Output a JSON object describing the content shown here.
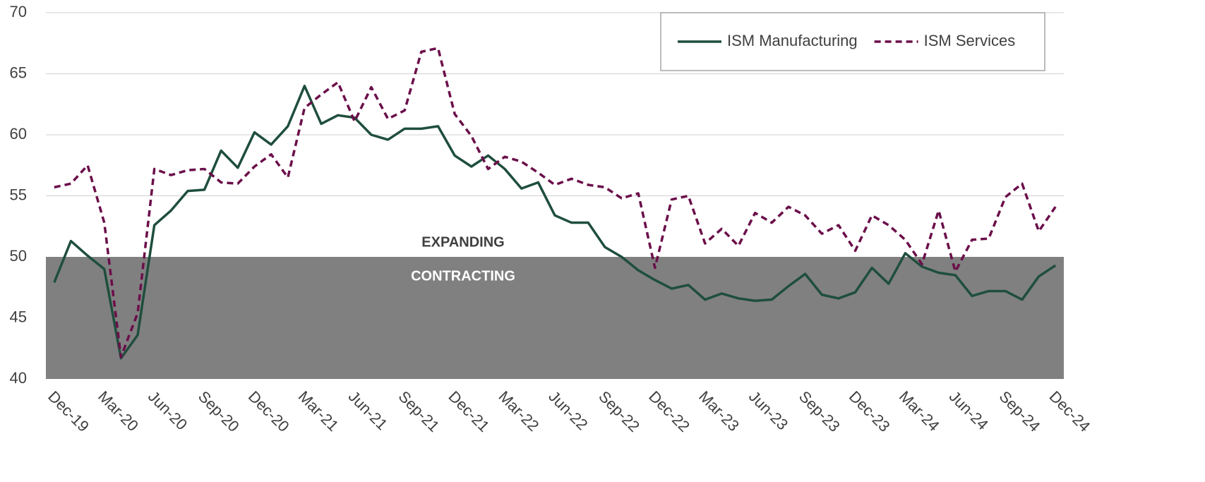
{
  "chart_data": {
    "type": "line",
    "categories": [
      "Dec-19",
      null,
      null,
      "Mar-20",
      null,
      null,
      "Jun-20",
      null,
      null,
      "Sep-20",
      null,
      null,
      "Dec-20",
      null,
      null,
      "Mar-21",
      null,
      null,
      "Jun-21",
      null,
      null,
      "Sep-21",
      null,
      null,
      "Dec-21",
      null,
      null,
      "Mar-22",
      null,
      null,
      "Jun-22",
      null,
      null,
      "Sep-22",
      null,
      null,
      "Dec-22",
      null,
      null,
      "Mar-23",
      null,
      null,
      "Jun-23",
      null,
      null,
      "Sep-23",
      null,
      null,
      "Dec-23",
      null,
      null,
      "Mar-24",
      null,
      null,
      "Jun-24",
      null,
      null,
      "Sep-24",
      null,
      null,
      "Dec-24"
    ],
    "series": [
      {
        "name": "ISM Manufacturing",
        "color": "#1f4e3d",
        "dash": false,
        "values": [
          47.9,
          51.3,
          50.1,
          49.0,
          41.7,
          43.6,
          52.6,
          53.8,
          55.4,
          55.5,
          58.7,
          57.3,
          60.2,
          59.2,
          60.7,
          64.0,
          60.9,
          61.6,
          61.4,
          60.0,
          59.6,
          60.5,
          60.5,
          60.7,
          58.3,
          57.4,
          58.3,
          57.2,
          55.6,
          56.1,
          53.4,
          52.8,
          52.8,
          50.8,
          50.0,
          48.9,
          48.1,
          47.4,
          47.7,
          46.5,
          47.0,
          46.6,
          46.4,
          46.5,
          47.6,
          48.6,
          46.9,
          46.6,
          47.1,
          49.1,
          47.8,
          50.3,
          49.2,
          48.7,
          48.5,
          46.8,
          47.2,
          47.2,
          46.5,
          48.4,
          49.3
        ]
      },
      {
        "name": "ISM Services",
        "color": "#6b0f4a",
        "dash": true,
        "values": [
          55.7,
          56.0,
          57.5,
          52.8,
          41.8,
          45.4,
          57.2,
          56.7,
          57.1,
          57.2,
          56.1,
          56.0,
          57.4,
          58.4,
          56.5,
          62.2,
          63.3,
          64.3,
          61.1,
          63.9,
          61.3,
          62.0,
          66.8,
          67.1,
          61.7,
          59.9,
          57.2,
          58.2,
          57.8,
          56.9,
          55.9,
          56.4,
          55.9,
          55.7,
          54.8,
          55.2,
          49.1,
          54.7,
          55.0,
          51.1,
          52.3,
          50.9,
          53.6,
          52.8,
          54.1,
          53.4,
          51.9,
          52.6,
          50.5,
          53.4,
          52.6,
          51.4,
          49.4,
          53.8,
          48.8,
          51.4,
          51.5,
          54.9,
          56.0,
          52.1,
          54.1
        ]
      }
    ],
    "ylim": [
      40,
      70
    ],
    "yticks": [
      40,
      45,
      50,
      55,
      60,
      65,
      70
    ],
    "grid": true,
    "threshold": 50,
    "threshold_color": "#808080",
    "annotations": [
      "EXPANDING",
      "CONTRACTING"
    ],
    "legend": "top-right"
  }
}
